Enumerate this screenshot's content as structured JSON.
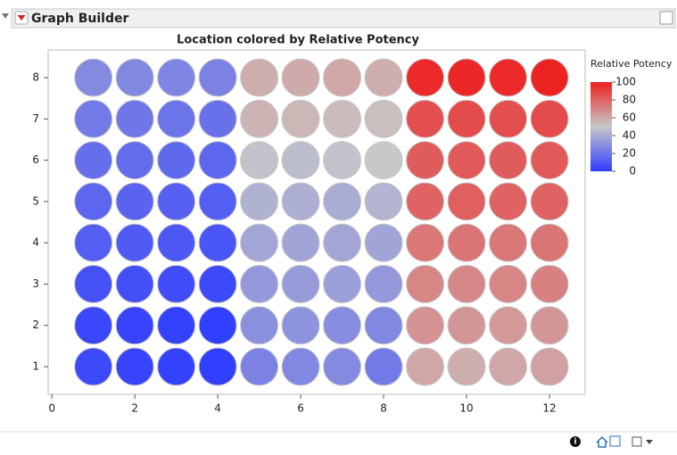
{
  "header": {
    "title": "Graph Builder"
  },
  "chart_data": {
    "type": "scatter",
    "title": "Location colored by Relative Potency",
    "x": [
      1,
      2,
      3,
      4,
      5,
      6,
      7,
      8,
      9,
      10,
      11,
      12,
      1,
      2,
      3,
      4,
      5,
      6,
      7,
      8,
      9,
      10,
      11,
      12,
      1,
      2,
      3,
      4,
      5,
      6,
      7,
      8,
      9,
      10,
      11,
      12,
      1,
      2,
      3,
      4,
      5,
      6,
      7,
      8,
      9,
      10,
      11,
      12,
      1,
      2,
      3,
      4,
      5,
      6,
      7,
      8,
      9,
      10,
      11,
      12,
      1,
      2,
      3,
      4,
      5,
      6,
      7,
      8,
      9,
      10,
      11,
      12,
      1,
      2,
      3,
      4,
      5,
      6,
      7,
      8,
      9,
      10,
      11,
      12,
      1,
      2,
      3,
      4,
      5,
      6,
      7,
      8,
      9,
      10,
      11,
      12
    ],
    "y": [
      1,
      1,
      1,
      1,
      1,
      1,
      1,
      1,
      1,
      1,
      1,
      1,
      2,
      2,
      2,
      2,
      2,
      2,
      2,
      2,
      2,
      2,
      2,
      2,
      3,
      3,
      3,
      3,
      3,
      3,
      3,
      3,
      3,
      3,
      3,
      3,
      4,
      4,
      4,
      4,
      4,
      4,
      4,
      4,
      4,
      4,
      4,
      4,
      5,
      5,
      5,
      5,
      5,
      5,
      5,
      5,
      5,
      5,
      5,
      5,
      6,
      6,
      6,
      6,
      6,
      6,
      6,
      6,
      6,
      6,
      6,
      6,
      7,
      7,
      7,
      7,
      7,
      7,
      7,
      7,
      7,
      7,
      7,
      7,
      8,
      8,
      8,
      8,
      8,
      8,
      8,
      8,
      8,
      8,
      8,
      8
    ],
    "color_values": [
      5,
      3,
      2,
      1,
      25,
      27,
      28,
      22,
      60,
      58,
      60,
      62,
      4,
      3,
      2,
      1,
      30,
      31,
      29,
      27,
      66,
      65,
      64,
      65,
      8,
      7,
      6,
      5,
      33,
      34,
      35,
      33,
      70,
      69,
      70,
      71,
      12,
      11,
      10,
      9,
      38,
      37,
      38,
      37,
      74,
      75,
      74,
      75,
      15,
      14,
      13,
      12,
      42,
      41,
      40,
      43,
      80,
      81,
      80,
      80,
      18,
      17,
      16,
      15,
      48,
      46,
      48,
      50,
      82,
      83,
      82,
      83,
      22,
      21,
      20,
      19,
      56,
      55,
      54,
      53,
      86,
      87,
      86,
      87,
      28,
      27,
      26,
      25,
      58,
      59,
      60,
      58,
      97,
      98,
      97,
      99
    ],
    "color_label": "Relative Potency",
    "colormap": [
      "#2e3cff",
      "#c8c8c8",
      "#ee2020"
    ],
    "color_lim": [
      0,
      100
    ],
    "color_ticks": [
      0,
      20,
      40,
      60,
      80,
      100
    ],
    "xlim": [
      -0.09,
      12.86
    ],
    "ylim": [
      0.33,
      8.67
    ],
    "xticks": [
      0,
      2,
      4,
      6,
      8,
      10,
      12
    ],
    "yticks": [
      1,
      2,
      3,
      4,
      5,
      6,
      7,
      8
    ]
  }
}
